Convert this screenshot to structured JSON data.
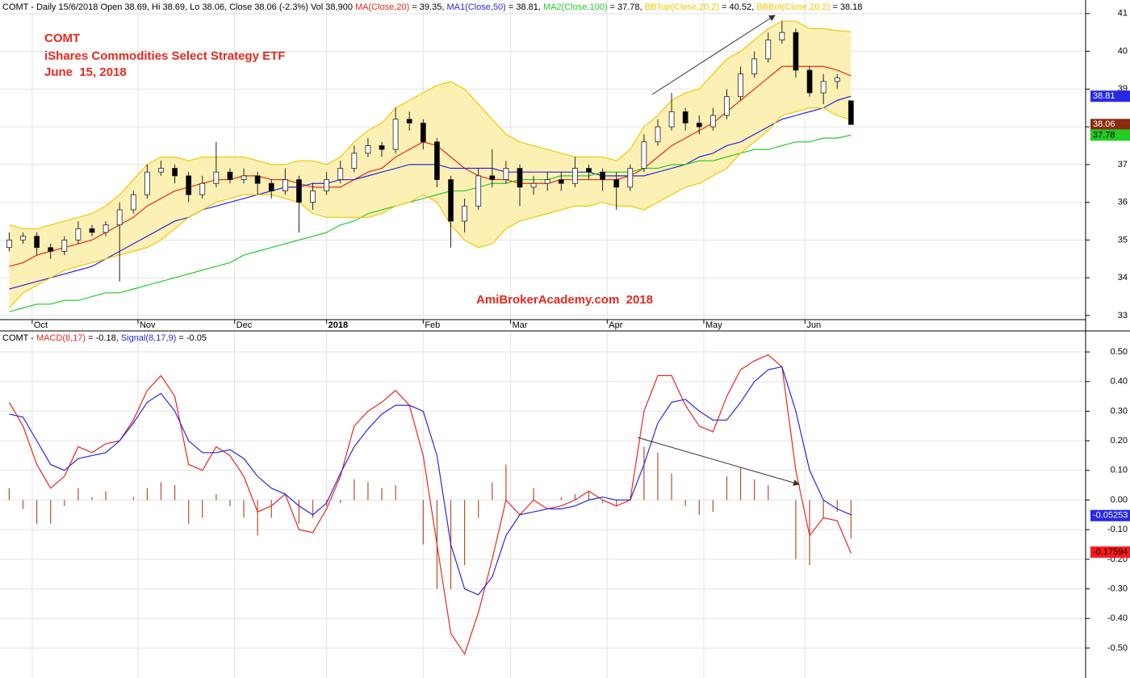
{
  "chart_data": [
    {
      "type": "candlestick",
      "header": "COMT - Daily 15/6/2018 Open 38.69, Hi 38.69, Lo 38.06, Close 38.06 (-2.3%) Vol 38,900 ",
      "annotations": [
        {
          "text": "COMT",
          "color": "#e8281e"
        },
        {
          "text": "iShares Commodities Select Strategy ETF",
          "color": "#e8281e"
        },
        {
          "text": "June  15, 2018",
          "color": "#e8281e"
        },
        {
          "text": "AmiBrokerAcademy.com  2018",
          "color": "#e8281e"
        }
      ],
      "xlim": [
        0,
        236
      ],
      "xticks": [
        {
          "value": 7,
          "label": "Oct"
        },
        {
          "value": 30,
          "label": "Nov"
        },
        {
          "value": 51,
          "label": "Dec"
        },
        {
          "value": 71,
          "label": "2018"
        },
        {
          "value": 92,
          "label": "Feb"
        },
        {
          "value": 111,
          "label": "Mar"
        },
        {
          "value": 132,
          "label": "Apr"
        },
        {
          "value": 153,
          "label": "May"
        },
        {
          "value": 175,
          "label": "Jun"
        }
      ],
      "ylim": [
        32.89,
        41.36
      ],
      "yticks": [
        33,
        34,
        35,
        36,
        37,
        38,
        39,
        40,
        41
      ],
      "grid": true,
      "up_color": "#ffffff",
      "down_color": "#000000",
      "x": [
        2,
        5,
        8,
        11,
        14,
        17,
        20,
        23,
        26,
        29,
        32,
        35,
        38,
        41,
        44,
        47,
        50,
        53,
        56,
        59,
        62,
        65,
        68,
        71,
        74,
        77,
        80,
        83,
        86,
        89,
        92,
        95,
        98,
        101,
        104,
        107,
        110,
        113,
        116,
        119,
        122,
        125,
        128,
        131,
        134,
        137,
        140,
        143,
        146,
        149,
        152,
        155,
        158,
        161,
        164,
        167,
        170,
        173,
        176,
        179,
        182,
        185
      ],
      "open": [
        34.8,
        35.0,
        35.1,
        34.8,
        34.7,
        35.0,
        35.3,
        35.2,
        35.4,
        35.8,
        36.2,
        36.8,
        36.9,
        36.7,
        36.2,
        36.5,
        36.8,
        36.6,
        36.7,
        36.5,
        36.3,
        36.6,
        36.0,
        36.3,
        36.6,
        36.9,
        37.3,
        37.5,
        37.4,
        38.2,
        38.1,
        37.6,
        36.6,
        35.5,
        35.9,
        36.7,
        36.6,
        36.9,
        36.4,
        36.5,
        36.6,
        36.5,
        36.9,
        36.8,
        36.6,
        36.4,
        36.9,
        37.6,
        38.0,
        38.4,
        38.1,
        38.0,
        38.3,
        38.8,
        39.4,
        39.8,
        40.3,
        40.5,
        39.5,
        38.9,
        39.2,
        38.69
      ],
      "high": [
        35.2,
        35.2,
        35.2,
        34.9,
        35.1,
        35.5,
        35.4,
        35.5,
        36.0,
        36.3,
        37.0,
        37.1,
        37.0,
        36.8,
        36.7,
        37.6,
        36.9,
        36.9,
        36.8,
        36.6,
        36.9,
        36.7,
        36.5,
        36.8,
        37.1,
        37.5,
        37.7,
        37.6,
        38.5,
        38.4,
        38.2,
        37.7,
        36.7,
        36.1,
        36.9,
        37.4,
        37.1,
        37.0,
        36.7,
        36.8,
        36.8,
        37.2,
        37.0,
        36.9,
        36.8,
        37.0,
        37.8,
        38.2,
        38.9,
        38.5,
        38.3,
        38.5,
        39.0,
        39.6,
        40.0,
        40.5,
        40.8,
        40.6,
        39.6,
        39.4,
        39.4,
        38.69
      ],
      "low": [
        34.7,
        34.9,
        34.6,
        34.5,
        34.6,
        34.9,
        35.1,
        35.1,
        33.9,
        35.7,
        36.1,
        36.7,
        36.5,
        36.0,
        36.1,
        36.4,
        36.5,
        36.5,
        36.2,
        36.1,
        36.2,
        35.2,
        35.8,
        36.2,
        36.5,
        36.8,
        37.2,
        37.2,
        37.3,
        37.9,
        37.4,
        36.4,
        34.8,
        35.2,
        35.8,
        36.4,
        36.5,
        35.9,
        36.2,
        36.3,
        36.3,
        36.4,
        36.6,
        36.3,
        35.8,
        36.3,
        36.8,
        37.5,
        37.9,
        37.9,
        37.8,
        37.9,
        38.2,
        38.7,
        39.3,
        39.7,
        40.2,
        39.3,
        38.8,
        38.6,
        39.0,
        38.06
      ],
      "close": [
        35.0,
        35.1,
        34.8,
        34.7,
        35.0,
        35.3,
        35.2,
        35.4,
        35.8,
        36.2,
        36.8,
        36.9,
        36.7,
        36.2,
        36.5,
        36.8,
        36.6,
        36.7,
        36.5,
        36.3,
        36.6,
        36.0,
        36.3,
        36.6,
        36.9,
        37.3,
        37.5,
        37.4,
        38.2,
        38.1,
        37.6,
        36.6,
        35.5,
        35.9,
        36.7,
        36.6,
        36.9,
        36.4,
        36.5,
        36.6,
        36.5,
        36.9,
        36.8,
        36.6,
        36.4,
        36.9,
        37.6,
        38.0,
        38.4,
        38.1,
        38.0,
        38.3,
        38.8,
        39.4,
        39.8,
        40.3,
        40.5,
        39.5,
        38.9,
        39.2,
        39.3,
        38.06
      ],
      "band_color": "#fdf0b4",
      "series": [
        {
          "name": "MA(Close,20)",
          "legend_text": " = 39.35, ",
          "color": "#e8281e",
          "values": [
            34.3,
            34.4,
            34.6,
            34.7,
            34.8,
            34.9,
            35.0,
            35.2,
            35.4,
            35.6,
            35.9,
            36.1,
            36.3,
            36.4,
            36.5,
            36.6,
            36.6,
            36.7,
            36.7,
            36.6,
            36.6,
            36.5,
            36.4,
            36.4,
            36.4,
            36.6,
            36.8,
            36.9,
            37.2,
            37.4,
            37.6,
            37.5,
            37.2,
            36.9,
            36.7,
            36.6,
            36.6,
            36.5,
            36.5,
            36.5,
            36.6,
            36.6,
            36.6,
            36.6,
            36.6,
            36.7,
            36.9,
            37.2,
            37.5,
            37.7,
            37.9,
            38.1,
            38.4,
            38.7,
            39.0,
            39.3,
            39.6,
            39.6,
            39.6,
            39.6,
            39.5,
            39.35
          ]
        },
        {
          "name": "MA1(Close,50)",
          "legend_text": " = 38.81, ",
          "color": "#2828e6",
          "values": [
            33.7,
            33.8,
            33.9,
            34.0,
            34.1,
            34.2,
            34.3,
            34.5,
            34.7,
            34.9,
            35.1,
            35.3,
            35.5,
            35.6,
            35.8,
            35.9,
            36.0,
            36.1,
            36.2,
            36.3,
            36.4,
            36.4,
            36.5,
            36.5,
            36.6,
            36.6,
            36.7,
            36.8,
            36.9,
            37.0,
            37.0,
            37.0,
            36.9,
            36.9,
            36.9,
            36.9,
            36.8,
            36.8,
            36.8,
            36.8,
            36.8,
            36.8,
            36.8,
            36.7,
            36.7,
            36.7,
            36.7,
            36.8,
            36.9,
            37.0,
            37.2,
            37.3,
            37.5,
            37.6,
            37.8,
            38.0,
            38.2,
            38.3,
            38.4,
            38.5,
            38.7,
            38.81
          ]
        },
        {
          "name": "MA2(Close,100)",
          "legend_text": " = 37.78, ",
          "color": "#22cc22",
          "values": [
            33.1,
            33.2,
            33.3,
            33.3,
            33.4,
            33.4,
            33.5,
            33.6,
            33.6,
            33.7,
            33.8,
            33.9,
            34.0,
            34.1,
            34.2,
            34.3,
            34.4,
            34.6,
            34.7,
            34.8,
            34.9,
            35.0,
            35.1,
            35.2,
            35.4,
            35.5,
            35.7,
            35.8,
            35.9,
            36.0,
            36.1,
            36.2,
            36.3,
            36.3,
            36.4,
            36.5,
            36.5,
            36.6,
            36.6,
            36.6,
            36.7,
            36.7,
            36.7,
            36.8,
            36.8,
            36.8,
            36.9,
            36.9,
            37.0,
            37.0,
            37.1,
            37.1,
            37.2,
            37.3,
            37.4,
            37.4,
            37.5,
            37.6,
            37.6,
            37.7,
            37.7,
            37.78
          ]
        },
        {
          "name": "BBTop(Close,20,2)",
          "legend_text": " = 40.52, ",
          "color": "#f0c800",
          "values": [
            35.4,
            35.3,
            35.3,
            35.4,
            35.5,
            35.6,
            35.7,
            35.9,
            36.2,
            36.6,
            37.0,
            37.2,
            37.2,
            37.1,
            37.2,
            37.2,
            37.2,
            37.2,
            37.1,
            37.0,
            37.0,
            37.1,
            37.1,
            37.0,
            37.2,
            37.6,
            37.9,
            38.1,
            38.5,
            38.7,
            38.9,
            39.1,
            39.2,
            39.0,
            38.6,
            38.2,
            37.8,
            37.6,
            37.5,
            37.4,
            37.3,
            37.2,
            37.2,
            37.2,
            37.1,
            37.4,
            38.0,
            38.3,
            38.7,
            38.9,
            39.0,
            39.4,
            39.8,
            40.0,
            40.3,
            40.6,
            40.8,
            40.8,
            40.6,
            40.6,
            40.55,
            40.52
          ]
        },
        {
          "name": "BBBot(Close,20,2)",
          "legend_text": " = 38.18",
          "color": "#f0c800",
          "values": [
            33.2,
            33.6,
            33.8,
            34.0,
            34.2,
            34.3,
            34.4,
            34.5,
            34.6,
            34.7,
            34.8,
            35.0,
            35.3,
            35.6,
            35.8,
            36.0,
            36.1,
            36.2,
            36.2,
            36.2,
            36.1,
            36.0,
            35.7,
            35.6,
            35.6,
            35.6,
            35.6,
            35.7,
            35.9,
            36.0,
            36.2,
            36.0,
            35.4,
            35.0,
            34.8,
            34.9,
            35.3,
            35.5,
            35.6,
            35.7,
            35.8,
            35.9,
            35.9,
            36.0,
            35.9,
            35.9,
            35.8,
            36.0,
            36.2,
            36.4,
            36.5,
            36.7,
            36.9,
            37.3,
            37.6,
            37.9,
            38.3,
            38.4,
            38.5,
            38.5,
            38.3,
            38.18
          ]
        }
      ],
      "badges": [
        {
          "value": 38.81,
          "color": "#2828e6",
          "text_color": "#ffffff"
        },
        {
          "value": 38.06,
          "color": "#8b2a10",
          "text_color": "#ffffff"
        },
        {
          "value": 37.78,
          "color": "#22cc22",
          "text_color": "#000000"
        }
      ]
    },
    {
      "type": "line",
      "header": "COMT - ",
      "xlim": [
        0,
        236
      ],
      "ylim": [
        -0.601,
        0.571
      ],
      "yticks": [
        {
          "value": 0.5,
          "label": "0.50"
        },
        {
          "value": 0.4,
          "label": "0.40"
        },
        {
          "value": 0.3,
          "label": "0.30"
        },
        {
          "value": 0.2,
          "label": "0.20"
        },
        {
          "value": 0.1,
          "label": "0.10"
        },
        {
          "value": 0,
          "label": "0.00"
        },
        {
          "value": -0.1,
          "label": "-0.10"
        },
        {
          "value": -0.2,
          "label": "-0.20"
        },
        {
          "value": -0.3,
          "label": "-0.30"
        },
        {
          "value": -0.4,
          "label": "-0.40"
        },
        {
          "value": -0.5,
          "label": "-0.50"
        }
      ],
      "grid": true,
      "x": [
        2,
        5,
        8,
        11,
        14,
        17,
        20,
        23,
        26,
        29,
        32,
        35,
        38,
        41,
        44,
        47,
        50,
        53,
        56,
        59,
        62,
        65,
        68,
        71,
        74,
        77,
        80,
        83,
        86,
        89,
        92,
        95,
        98,
        101,
        104,
        107,
        110,
        113,
        116,
        119,
        122,
        125,
        128,
        131,
        134,
        137,
        140,
        143,
        146,
        149,
        152,
        155,
        158,
        161,
        164,
        167,
        170,
        173,
        176,
        179,
        182,
        185
      ],
      "series": [
        {
          "name": "MACD(8,17)",
          "legend_text": " = -0.18, ",
          "color": "#e8281e",
          "values": [
            0.33,
            0.25,
            0.12,
            0.04,
            0.08,
            0.18,
            0.16,
            0.19,
            0.2,
            0.27,
            0.37,
            0.42,
            0.35,
            0.12,
            0.1,
            0.18,
            0.15,
            0.08,
            -0.04,
            -0.02,
            0.02,
            -0.1,
            -0.11,
            -0.03,
            0.08,
            0.25,
            0.3,
            0.33,
            0.37,
            0.32,
            0.15,
            -0.15,
            -0.45,
            -0.52,
            -0.38,
            -0.2,
            0.0,
            -0.05,
            0.0,
            -0.03,
            -0.02,
            0.0,
            0.03,
            0.0,
            -0.02,
            0.0,
            0.3,
            0.42,
            0.42,
            0.32,
            0.25,
            0.23,
            0.35,
            0.44,
            0.47,
            0.49,
            0.45,
            0.1,
            -0.12,
            -0.06,
            -0.07,
            -0.18
          ]
        },
        {
          "name": "Signal(8,17,9)",
          "legend_text": " = -0.05",
          "color": "#2828e6",
          "values": [
            0.29,
            0.28,
            0.2,
            0.12,
            0.1,
            0.14,
            0.15,
            0.16,
            0.2,
            0.26,
            0.33,
            0.36,
            0.3,
            0.2,
            0.16,
            0.16,
            0.17,
            0.14,
            0.08,
            0.04,
            0.02,
            -0.02,
            -0.05,
            -0.01,
            0.09,
            0.18,
            0.24,
            0.29,
            0.32,
            0.32,
            0.3,
            0.15,
            -0.15,
            -0.3,
            -0.32,
            -0.26,
            -0.12,
            -0.05,
            -0.04,
            -0.03,
            -0.03,
            -0.02,
            0.0,
            0.01,
            0.0,
            0.0,
            0.12,
            0.26,
            0.33,
            0.34,
            0.3,
            0.27,
            0.27,
            0.33,
            0.4,
            0.44,
            0.45,
            0.3,
            0.1,
            0.0,
            -0.03,
            -0.05
          ]
        }
      ],
      "histogram": {
        "color": "#b4502a",
        "values": [
          0.04,
          -0.03,
          -0.08,
          -0.08,
          -0.02,
          0.04,
          0.01,
          0.03,
          0.0,
          0.01,
          0.04,
          0.06,
          0.05,
          -0.08,
          -0.06,
          0.02,
          -0.02,
          -0.06,
          -0.12,
          -0.06,
          0.0,
          -0.08,
          -0.06,
          -0.02,
          -0.01,
          0.07,
          0.06,
          0.04,
          0.05,
          0.0,
          -0.15,
          -0.3,
          -0.3,
          -0.22,
          -0.06,
          0.06,
          0.12,
          0.0,
          0.04,
          0.0,
          0.01,
          0.02,
          0.03,
          -0.01,
          -0.02,
          0.0,
          0.18,
          0.16,
          0.09,
          -0.02,
          -0.05,
          -0.04,
          0.08,
          0.11,
          0.07,
          0.05,
          0.0,
          -0.2,
          -0.22,
          -0.06,
          -0.04,
          -0.13
        ]
      },
      "badges": [
        {
          "value": -0.05253,
          "color": "#2828e6",
          "text_color": "#ffffff"
        },
        {
          "value": -0.17594,
          "color": "#ff1a1a",
          "text_color": "#000000"
        }
      ]
    }
  ]
}
